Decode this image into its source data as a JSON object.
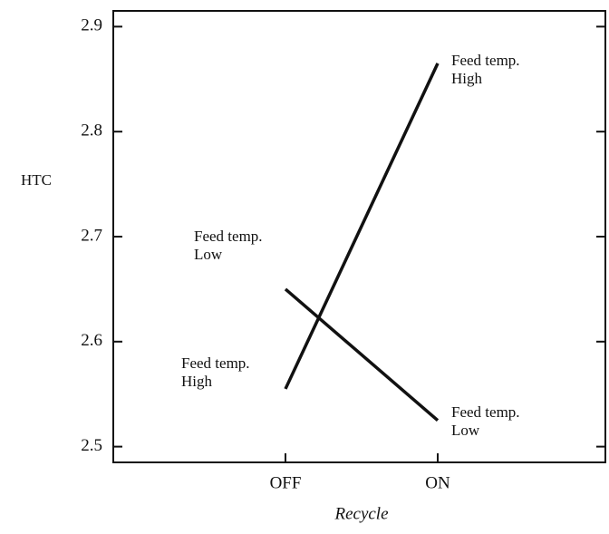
{
  "chart_data": {
    "type": "line",
    "y_label": "HTC",
    "x_label": "Recycle",
    "categories": [
      "OFF",
      "ON"
    ],
    "series": [
      {
        "color": "#111111",
        "values": [
          2.555,
          2.865
        ]
      },
      {
        "color": "#111111",
        "values": [
          2.65,
          2.525
        ]
      }
    ],
    "annotations": [
      {
        "lines": [
          "Feed temp.",
          "High"
        ]
      },
      {
        "lines": [
          "Feed temp.",
          "High"
        ]
      },
      {
        "lines": [
          "Feed temp.",
          "Low"
        ]
      },
      {
        "lines": [
          "Feed temp.",
          "Low"
        ]
      }
    ],
    "ylim": [
      2.485,
      2.915
    ],
    "yticks": [
      2.5,
      2.6,
      2.7,
      2.8,
      2.9
    ],
    "grid": false
  }
}
